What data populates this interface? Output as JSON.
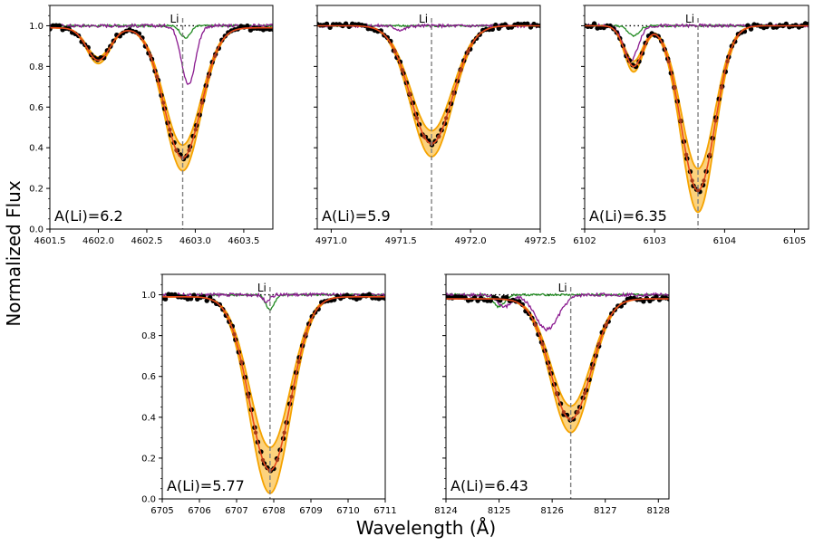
{
  "figure": {
    "ylabel": "Normalized Flux",
    "xlabel": "Wavelength (Å)"
  },
  "chart_data": [
    {
      "type": "line",
      "annotation": "A(Li)=6.2",
      "line_label": "Li",
      "line_x": 4602.87,
      "xlim": [
        4601.5,
        4603.8
      ],
      "ylim": [
        0.0,
        1.1
      ],
      "xticks": [
        4601.5,
        4602.0,
        4602.5,
        4603.0,
        4603.5
      ],
      "xtick_labels": [
        "4601.5",
        "4602.0",
        "4602.5",
        "4603.0",
        "4603.5"
      ],
      "yticks": [
        0.0,
        0.2,
        0.4,
        0.6,
        0.8,
        1.0
      ],
      "ytick_labels": [
        "0.0",
        "0.2",
        "0.4",
        "0.6",
        "0.8",
        "1.0"
      ],
      "show_ytick_labels": true,
      "continuum": 0.99,
      "lines": [
        {
          "center": 4602.0,
          "depth": 0.16,
          "sigma": 0.12
        },
        {
          "center": 4602.87,
          "depth": 0.64,
          "sigma": 0.19
        }
      ],
      "band": 0.045,
      "green": [
        {
          "center": 4602.9,
          "depth": 0.06,
          "sigma": 0.05
        }
      ],
      "purple": [
        {
          "center": 4602.93,
          "depth": 0.29,
          "sigma": 0.07
        }
      ],
      "obs_noise": 0.012
    },
    {
      "type": "line",
      "annotation": "A(Li)=5.9",
      "line_label": "Li",
      "line_x": 4971.72,
      "xlim": [
        4970.9,
        4972.5
      ],
      "ylim": [
        0.0,
        1.1
      ],
      "xticks": [
        4971.0,
        4971.5,
        4972.0,
        4972.5
      ],
      "xtick_labels": [
        "4971.0",
        "4971.5",
        "4972.0",
        "4972.5"
      ],
      "yticks": [
        0.0,
        0.2,
        0.4,
        0.6,
        0.8,
        1.0
      ],
      "ytick_labels": [
        "0.0",
        "0.2",
        "0.4",
        "0.6",
        "0.8",
        "1.0"
      ],
      "show_ytick_labels": false,
      "continuum": 1.0,
      "lines": [
        {
          "center": 4971.72,
          "depth": 0.58,
          "sigma": 0.15
        }
      ],
      "band": 0.05,
      "green": [],
      "purple": [
        {
          "center": 4971.5,
          "depth": 0.02,
          "sigma": 0.04
        }
      ],
      "obs_noise": 0.01
    },
    {
      "type": "line",
      "annotation": "A(Li)=6.35",
      "line_label": "Li",
      "line_x": 6103.62,
      "xlim": [
        6102.0,
        6105.2
      ],
      "ylim": [
        0.0,
        1.1
      ],
      "xticks": [
        6102,
        6103,
        6104,
        6105
      ],
      "xtick_labels": [
        "6102",
        "6103",
        "6104",
        "6105"
      ],
      "yticks": [
        0.0,
        0.2,
        0.4,
        0.6,
        0.8,
        1.0
      ],
      "ytick_labels": [
        "0.0",
        "0.2",
        "0.4",
        "0.6",
        "0.8",
        "1.0"
      ],
      "show_ytick_labels": false,
      "continuum": 1.0,
      "lines": [
        {
          "center": 6102.7,
          "depth": 0.2,
          "sigma": 0.13
        },
        {
          "center": 6103.62,
          "depth": 0.81,
          "sigma": 0.24
        }
      ],
      "band": 0.06,
      "green": [
        {
          "center": 6102.7,
          "depth": 0.05,
          "sigma": 0.08
        }
      ],
      "purple": [
        {
          "center": 6102.66,
          "depth": 0.17,
          "sigma": 0.1
        }
      ],
      "obs_noise": 0.012
    },
    {
      "type": "line",
      "annotation": "A(Li)=5.77",
      "line_label": "Li",
      "line_x": 6707.9,
      "xlim": [
        6705.0,
        6711.0
      ],
      "ylim": [
        0.0,
        1.1
      ],
      "xticks": [
        6705,
        6706,
        6707,
        6708,
        6709,
        6710,
        6711
      ],
      "xtick_labels": [
        "6705",
        "6706",
        "6707",
        "6708",
        "6709",
        "6710",
        "6711"
      ],
      "yticks": [
        0.0,
        0.2,
        0.4,
        0.6,
        0.8,
        1.0
      ],
      "ytick_labels": [
        "0.0",
        "0.2",
        "0.4",
        "0.6",
        "0.8",
        "1.0"
      ],
      "show_ytick_labels": true,
      "continuum": 0.99,
      "lines": [
        {
          "center": 6707.9,
          "depth": 0.85,
          "sigma": 0.55
        }
      ],
      "band": 0.06,
      "green": [
        {
          "center": 6707.9,
          "depth": 0.07,
          "sigma": 0.12
        }
      ],
      "purple": [
        {
          "center": 6707.8,
          "depth": 0.03,
          "sigma": 0.1
        }
      ],
      "obs_noise": 0.012
    },
    {
      "type": "line",
      "annotation": "A(Li)=6.43",
      "line_label": "Li",
      "line_x": 8126.35,
      "xlim": [
        8124.0,
        8128.2
      ],
      "ylim": [
        0.0,
        1.1
      ],
      "xticks": [
        8124,
        8125,
        8126,
        8127,
        8128
      ],
      "xtick_labels": [
        "8124",
        "8125",
        "8126",
        "8127",
        "8128"
      ],
      "yticks": [
        0.0,
        0.2,
        0.4,
        0.6,
        0.8,
        1.0
      ],
      "ytick_labels": [
        "0.0",
        "0.2",
        "0.4",
        "0.6",
        "0.8",
        "1.0"
      ],
      "show_ytick_labels": false,
      "continuum": 0.98,
      "lines": [
        {
          "center": 8126.35,
          "depth": 0.59,
          "sigma": 0.38
        }
      ],
      "band": 0.05,
      "green": [
        {
          "center": 8125.0,
          "depth": 0.06,
          "sigma": 0.1
        }
      ],
      "purple": [
        {
          "center": 8125.9,
          "depth": 0.17,
          "sigma": 0.22
        },
        {
          "center": 8125.1,
          "depth": 0.06,
          "sigma": 0.12
        }
      ],
      "obs_noise": 0.012
    }
  ],
  "colors": {
    "observed": "#000000",
    "model_fit": "#e8491c",
    "band_fill": "#fcd27d",
    "band_edge": "#f5a300",
    "green_line": "#228b22",
    "purple_line": "#8a1a8f",
    "li_marker": "#808080",
    "continuum_dots": "#000000",
    "fit_points": "#a83a1a"
  }
}
